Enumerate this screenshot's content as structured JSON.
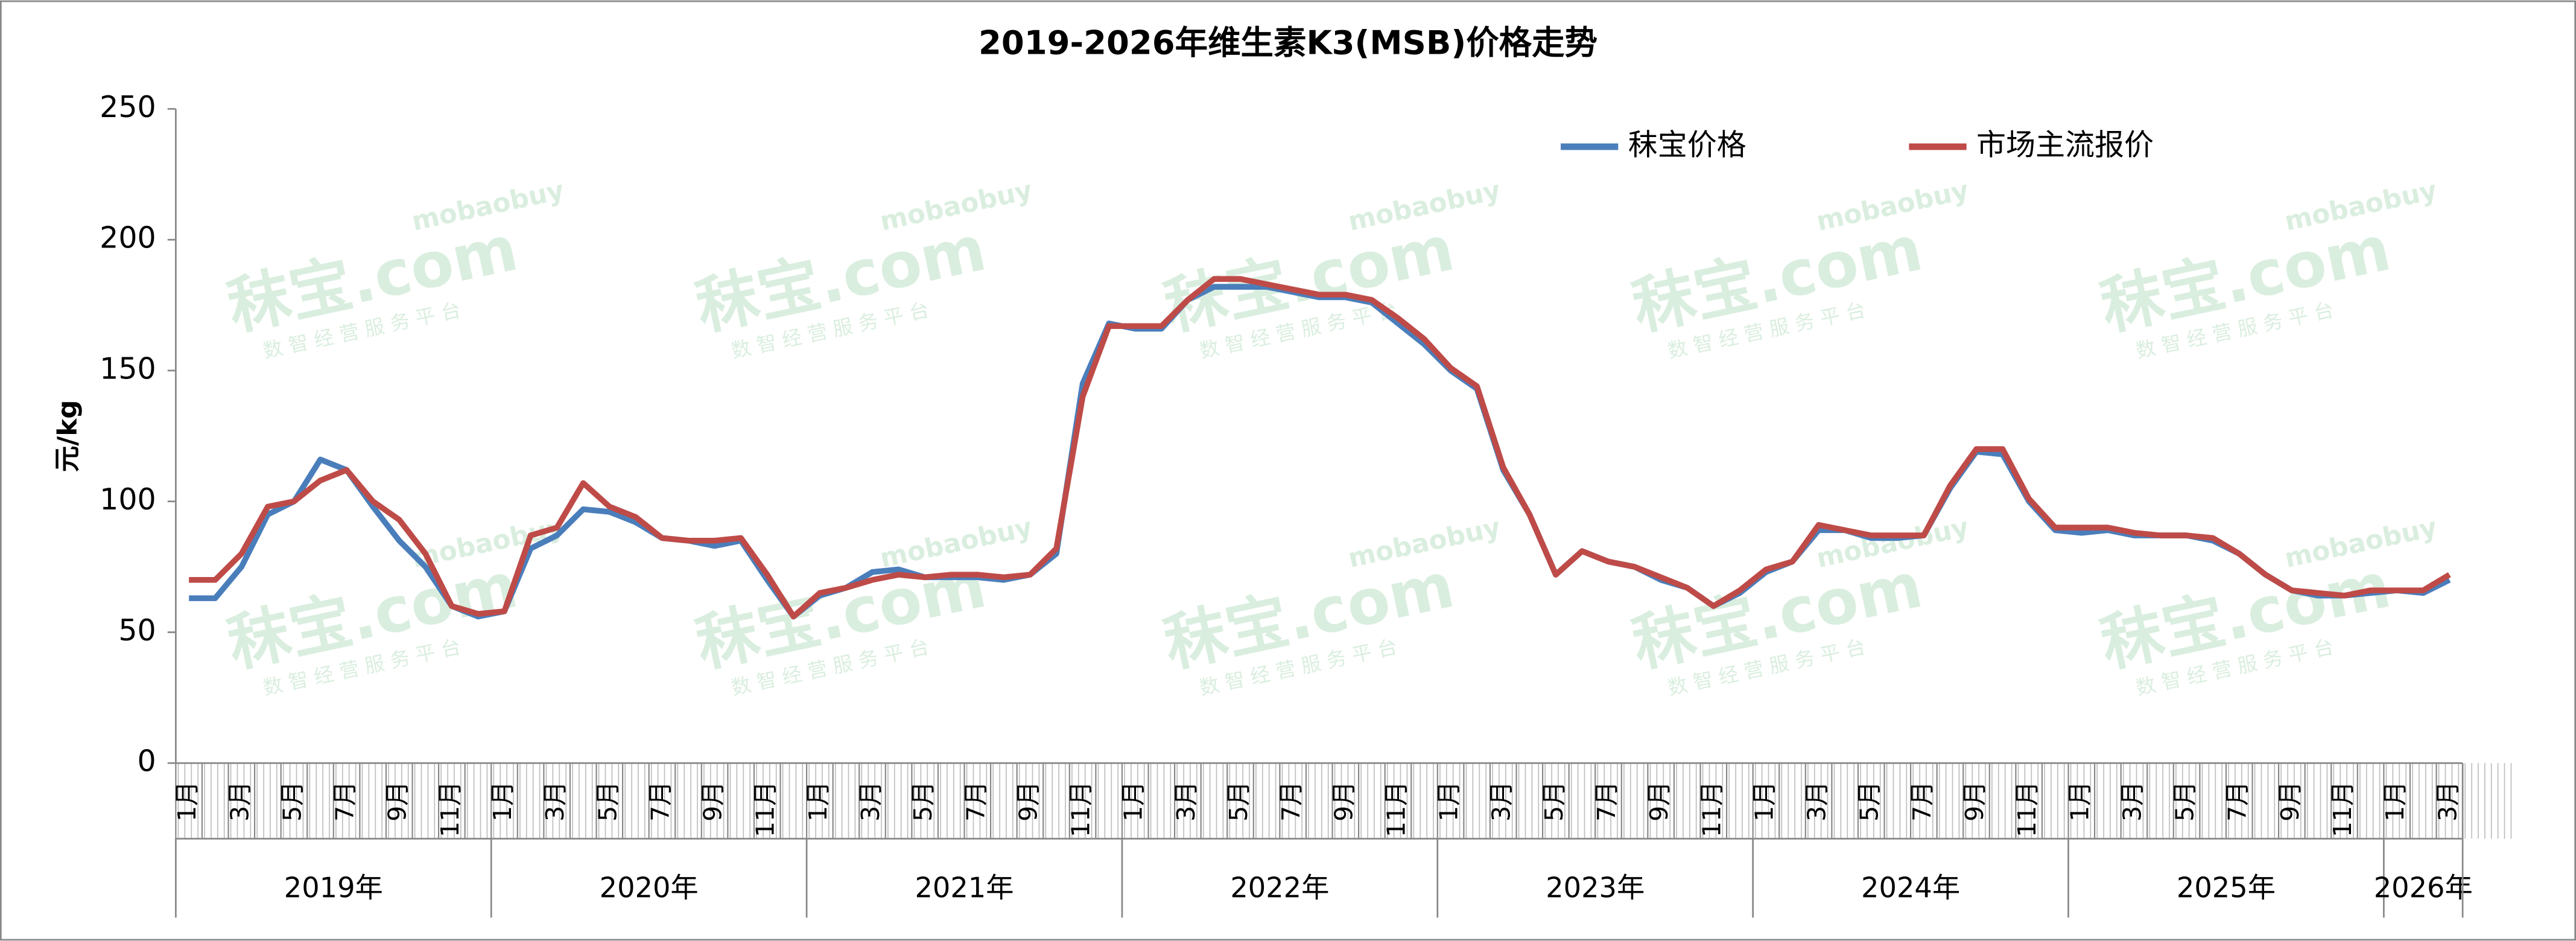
{
  "chart_data": {
    "type": "line",
    "title": "2019-2026年维生素K3(MSB)价格走势",
    "y_label": "元/kg",
    "categories": [
      "1月",
      null,
      "3月",
      null,
      "5月",
      null,
      "7月",
      null,
      "9月",
      null,
      "11月",
      null,
      "1月",
      null,
      "3月",
      null,
      "5月",
      null,
      "7月",
      null,
      "9月",
      null,
      "11月",
      null,
      "1月",
      null,
      "3月",
      null,
      "5月",
      null,
      "7月",
      null,
      "9月",
      null,
      "11月",
      null,
      "1月",
      null,
      "3月",
      null,
      "5月",
      null,
      "7月",
      null,
      "9月",
      null,
      "11月",
      null,
      "1月",
      null,
      "3月",
      null,
      "5月",
      null,
      "7月",
      null,
      "9月",
      null,
      "11月",
      null,
      "1月",
      null,
      "3月",
      null,
      "5月",
      null,
      "7月",
      null,
      "9月",
      null,
      "11月",
      null,
      "1月",
      null,
      "3月",
      null,
      "5月",
      null,
      "7月",
      null,
      "9月",
      null,
      "11月",
      null,
      "1月",
      null,
      "3月"
    ],
    "years": [
      "2019年",
      "2020年",
      "2021年",
      "2022年",
      "2023年",
      "2024年",
      "2025年",
      "2026年"
    ],
    "series": [
      {
        "name": "秣宝价格",
        "color": "#4a7ebb",
        "values": [
          63,
          63,
          75,
          95,
          100,
          116,
          112,
          98,
          85,
          75,
          60,
          56,
          58,
          82,
          87,
          97,
          96,
          92,
          86,
          85,
          83,
          85,
          70,
          56,
          64,
          67,
          73,
          74,
          71,
          71,
          71,
          70,
          72,
          80,
          145,
          168,
          166,
          166,
          177,
          182,
          182,
          182,
          180,
          178,
          178,
          176,
          168,
          160,
          150,
          143,
          112,
          95,
          72,
          81,
          77,
          75,
          70,
          67,
          60,
          65,
          73,
          77,
          89,
          89,
          86,
          86,
          87,
          105,
          119,
          118,
          100,
          89,
          88,
          89,
          87,
          87,
          87,
          85,
          80,
          72,
          66,
          64,
          64,
          65,
          66,
          65,
          70
        ]
      },
      {
        "name": "市场主流报价",
        "color": "#be4b48",
        "values": [
          70,
          70,
          80,
          98,
          100,
          108,
          112,
          100,
          93,
          80,
          60,
          57,
          58,
          87,
          90,
          107,
          98,
          94,
          86,
          85,
          85,
          86,
          72,
          56,
          65,
          67,
          70,
          72,
          71,
          72,
          72,
          71,
          72,
          82,
          140,
          167,
          167,
          167,
          177,
          185,
          185,
          183,
          181,
          179,
          179,
          177,
          170,
          162,
          151,
          144,
          113,
          95,
          72,
          81,
          77,
          75,
          71,
          67,
          60,
          66,
          74,
          77,
          91,
          89,
          87,
          87,
          87,
          106,
          120,
          120,
          101,
          90,
          90,
          90,
          88,
          87,
          87,
          86,
          80,
          72,
          66,
          65,
          64,
          66,
          66,
          66,
          72
        ]
      }
    ],
    "ylim": [
      0,
      250
    ],
    "yticks": [
      0,
      50,
      100,
      150,
      200,
      250
    ],
    "legend": "top-right",
    "watermark": {
      "brand": "秣宝.com",
      "site": "mobaobuy",
      "slogan": "数 智 经 营 服 务 平 台"
    }
  }
}
